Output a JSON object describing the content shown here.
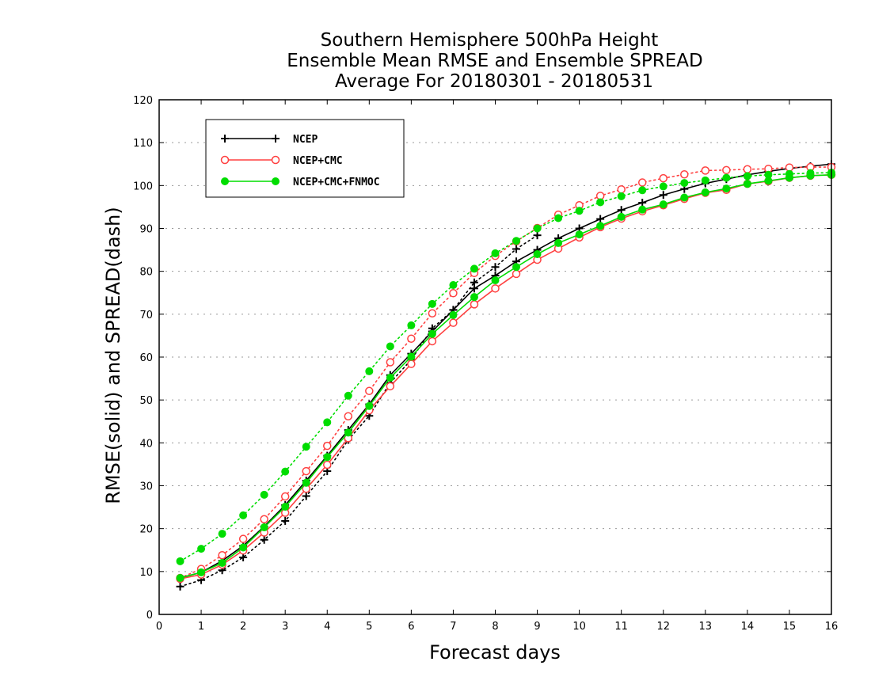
{
  "chart_data": {
    "type": "line",
    "title": [
      "Southern Hemisphere 500hPa Height",
      "Ensemble Mean RMSE and Ensemble SPREAD",
      "Average For 20180301 - 20180531"
    ],
    "xlabel": "Forecast days",
    "ylabel": "RMSE(solid) and SPREAD(dash)",
    "xlim": [
      0,
      16
    ],
    "ylim": [
      0,
      120
    ],
    "xticks": [
      0,
      1,
      2,
      3,
      4,
      5,
      6,
      7,
      8,
      9,
      10,
      11,
      12,
      13,
      14,
      15,
      16
    ],
    "yticks": [
      0,
      10,
      20,
      30,
      40,
      50,
      60,
      70,
      80,
      90,
      100,
      110,
      120
    ],
    "grid": true,
    "legend_position": "top-left",
    "x": [
      0.5,
      1,
      1.5,
      2,
      2.5,
      3,
      3.5,
      4,
      4.5,
      5,
      5.5,
      6,
      6.5,
      7,
      7.5,
      8,
      8.5,
      9,
      9.5,
      10,
      10.5,
      11,
      11.5,
      12,
      12.5,
      13,
      13.5,
      14,
      14.5,
      15,
      15.5,
      16
    ],
    "series": [
      {
        "name": "NCEP",
        "color": "#000000",
        "marker": "plus",
        "rmse": [
          8.5,
          9.8,
          12.5,
          16.0,
          20.5,
          25.5,
          31.2,
          37.0,
          43.0,
          49.0,
          55.8,
          60.8,
          66.0,
          71.0,
          76.0,
          79.0,
          82.3,
          85.0,
          87.7,
          90.0,
          92.2,
          94.3,
          96.0,
          97.8,
          99.2,
          100.5,
          101.5,
          102.5,
          103.3,
          104.0,
          104.5,
          105.0
        ],
        "spread": [
          6.5,
          8.0,
          10.3,
          13.3,
          17.4,
          21.8,
          27.6,
          33.4,
          40.7,
          46.3,
          54.0,
          59.4,
          66.7,
          71.0,
          77.4,
          81.0,
          85.2,
          88.4,
          null,
          null,
          null,
          null,
          null,
          null,
          null,
          null,
          null,
          null,
          null,
          null,
          null,
          null
        ]
      },
      {
        "name": "NCEP+CMC",
        "color": "#ff4040",
        "marker": "open-circle",
        "rmse": [
          8.3,
          9.3,
          11.6,
          14.9,
          19.1,
          23.7,
          29.3,
          34.9,
          41.1,
          47.6,
          53.2,
          58.4,
          63.7,
          68.0,
          72.3,
          76.0,
          79.4,
          82.7,
          85.3,
          87.9,
          90.3,
          92.3,
          94.0,
          95.4,
          96.9,
          98.3,
          99.0,
          100.4,
          101.0,
          101.8,
          102.3,
          102.5
        ],
        "spread": [
          8.5,
          10.6,
          13.8,
          17.6,
          22.2,
          27.5,
          33.4,
          39.3,
          46.2,
          52.1,
          58.8,
          64.3,
          70.2,
          74.9,
          79.6,
          83.6,
          87.0,
          90.1,
          93.2,
          95.4,
          97.6,
          99.1,
          100.7,
          101.7,
          102.6,
          103.5,
          103.6,
          103.8,
          103.9,
          104.2,
          104.3,
          104.3
        ]
      },
      {
        "name": "NCEP+CMC+FNMOC",
        "color": "#00dd00",
        "marker": "filled-circle",
        "rmse": [
          8.5,
          9.8,
          12.0,
          15.6,
          20.3,
          25.1,
          30.7,
          36.7,
          42.4,
          48.6,
          55.2,
          60.1,
          65.4,
          69.8,
          74.0,
          77.9,
          81.0,
          84.0,
          86.6,
          88.6,
          90.6,
          92.7,
          94.4,
          95.6,
          97.2,
          98.4,
          99.3,
          100.4,
          101.1,
          101.8,
          102.3,
          102.5
        ],
        "spread": [
          12.4,
          15.3,
          18.8,
          23.1,
          27.9,
          33.3,
          39.1,
          44.8,
          51.0,
          56.7,
          62.5,
          67.4,
          72.4,
          76.8,
          80.6,
          84.2,
          87.1,
          90.0,
          92.4,
          94.1,
          96.1,
          97.5,
          98.9,
          99.8,
          100.6,
          101.2,
          101.8,
          102.2,
          102.5,
          102.7,
          102.9,
          103.0
        ]
      }
    ]
  }
}
